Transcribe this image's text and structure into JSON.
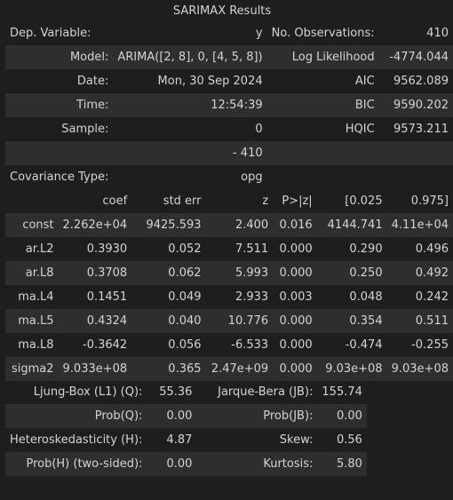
{
  "caption": "SARIMAX Results",
  "summary": {
    "rows": [
      [
        "Dep. Variable:",
        "y",
        "No. Observations:",
        "410"
      ],
      [
        "Model:",
        "ARIMA([2, 8], 0, [4, 5, 8])",
        "Log Likelihood",
        "-4774.044"
      ],
      [
        "Date:",
        "Mon, 30 Sep 2024",
        "AIC",
        "9562.089"
      ],
      [
        "Time:",
        "12:54:39",
        "BIC",
        "9590.202"
      ],
      [
        "Sample:",
        "0",
        "HQIC",
        "9573.211"
      ],
      [
        "",
        "- 410",
        "",
        ""
      ],
      [
        "Covariance Type:",
        "opg",
        "",
        ""
      ]
    ]
  },
  "coefficients": {
    "header": [
      "",
      "coef",
      "std err",
      "z",
      "P>|z|",
      "[0.025",
      "0.975]"
    ],
    "rows": [
      [
        "const",
        "2.262e+04",
        "9425.593",
        "2.400",
        "0.016",
        "4144.741",
        "4.11e+04"
      ],
      [
        "ar.L2",
        "0.3930",
        "0.052",
        "7.511",
        "0.000",
        "0.290",
        "0.496"
      ],
      [
        "ar.L8",
        "0.3708",
        "0.062",
        "5.993",
        "0.000",
        "0.250",
        "0.492"
      ],
      [
        "ma.L4",
        "0.1451",
        "0.049",
        "2.933",
        "0.003",
        "0.048",
        "0.242"
      ],
      [
        "ma.L5",
        "0.4324",
        "0.040",
        "10.776",
        "0.000",
        "0.354",
        "0.511"
      ],
      [
        "ma.L8",
        "-0.3642",
        "0.056",
        "-6.533",
        "0.000",
        "-0.474",
        "-0.255"
      ],
      [
        "sigma2",
        "9.033e+08",
        "0.365",
        "2.47e+09",
        "0.000",
        "9.03e+08",
        "9.03e+08"
      ]
    ]
  },
  "diagnostics": {
    "rows": [
      [
        "Ljung-Box (L1) (Q):",
        "55.36",
        "Jarque-Bera (JB):",
        "155.74"
      ],
      [
        "Prob(Q):",
        "0.00",
        "Prob(JB):",
        "0.00"
      ],
      [
        "Heteroskedasticity (H):",
        "4.87",
        "Skew:",
        "0.56"
      ],
      [
        "Prob(H) (two-sided):",
        "0.00",
        "Kurtosis:",
        "5.80"
      ]
    ]
  }
}
